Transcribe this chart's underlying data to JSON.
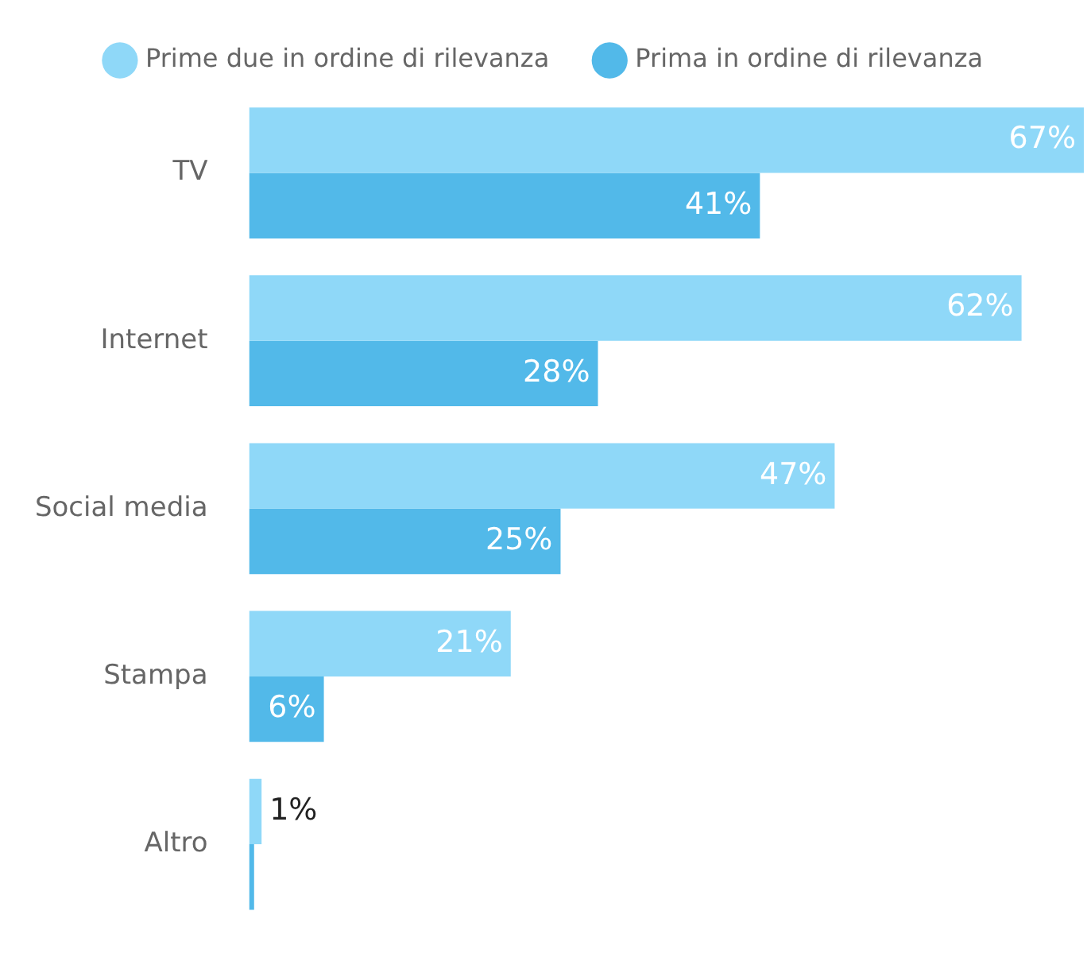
{
  "chart_data": {
    "type": "bar",
    "orientation": "horizontal",
    "legend": "top",
    "grid": false,
    "categories": [
      "TV",
      "Internet",
      "Social media",
      "Stampa",
      "Altro"
    ],
    "series": [
      {
        "name": "Prime due in ordine di rilevanza",
        "color": "#8fd8f8",
        "values": [
          67,
          62,
          47,
          21,
          1
        ],
        "value_labels": [
          "67%",
          "62%",
          "47%",
          "21%",
          "1%"
        ]
      },
      {
        "name": "Prima in ordine di rilevanza",
        "color": "#52b9e9",
        "values": [
          41,
          28,
          25,
          6,
          0.4
        ],
        "value_labels": [
          "41%",
          "28%",
          "25%",
          "6%",
          null
        ]
      }
    ]
  }
}
